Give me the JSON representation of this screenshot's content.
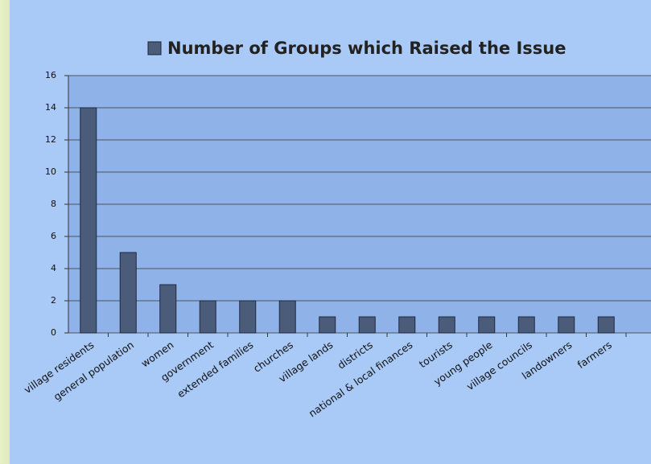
{
  "chart_data": {
    "type": "bar",
    "series": [
      {
        "name": "Number of Groups which Raised the Issue",
        "color": "#4b5b7a",
        "values": [
          14,
          5,
          3,
          2,
          2,
          2,
          1,
          1,
          1,
          1,
          1,
          1,
          1,
          1
        ]
      }
    ],
    "categories": [
      "village residents",
      "general population",
      "women",
      "government",
      "extended families",
      "churches",
      "village lands",
      "districts",
      "national & local finances",
      "tourists",
      "young people",
      "village councils",
      "landowners",
      "farmers"
    ],
    "ylim": [
      0,
      16
    ],
    "yticks": [
      0,
      2,
      4,
      6,
      8,
      10,
      12,
      14,
      16
    ],
    "grid": true,
    "legend": "top"
  }
}
